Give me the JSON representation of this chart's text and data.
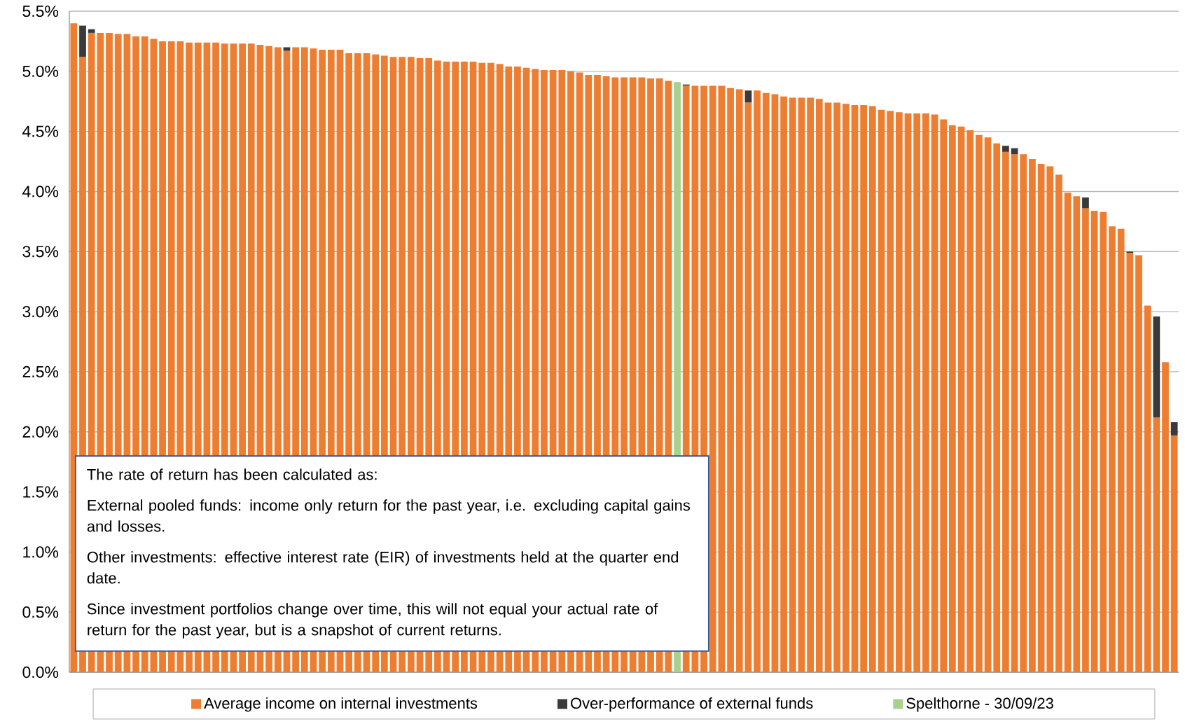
{
  "chart_data": {
    "type": "bar",
    "stacked": true,
    "grid": "y",
    "legend": "bottom",
    "tick_labels": "y",
    "categories": [
      null,
      null,
      null,
      null,
      null,
      null,
      null,
      null,
      null,
      null,
      null,
      null,
      null,
      null,
      null,
      null,
      null,
      null,
      null,
      null,
      null,
      null,
      null,
      null,
      null,
      null,
      null,
      null,
      null,
      null,
      null,
      null,
      null,
      null,
      null,
      null,
      null,
      null,
      null,
      null,
      null,
      null,
      null,
      null,
      null,
      null,
      null,
      null,
      null,
      null,
      null,
      null,
      null,
      null,
      null,
      null,
      null,
      null,
      null,
      null,
      null,
      null,
      null,
      null,
      null,
      null,
      null,
      null,
      null,
      null,
      null,
      null,
      null,
      null,
      null,
      null,
      null,
      null,
      null,
      null,
      null,
      null,
      null,
      null,
      null,
      null,
      null,
      null,
      null,
      null,
      null,
      null,
      null,
      null,
      null,
      null,
      null,
      null,
      null,
      null,
      null,
      null,
      null,
      null,
      null,
      null,
      null,
      null,
      null,
      null,
      null,
      null,
      null,
      null,
      null,
      null,
      null,
      null,
      null,
      null,
      null,
      null,
      null,
      null,
      null
    ],
    "ylim": [
      0,
      5.5
    ],
    "yticks": [
      {
        "value": 0,
        "label": "0.0%"
      },
      {
        "value": 0.5,
        "label": "0.5%"
      },
      {
        "value": 1,
        "label": "1.0%"
      },
      {
        "value": 1.5,
        "label": "1.5%"
      },
      {
        "value": 2,
        "label": "2.0%"
      },
      {
        "value": 2.5,
        "label": "2.5%"
      },
      {
        "value": 3,
        "label": "3.0%"
      },
      {
        "value": 3.5,
        "label": "3.5%"
      },
      {
        "value": 4,
        "label": "4.0%"
      },
      {
        "value": 4.5,
        "label": "4.5%"
      },
      {
        "value": 5,
        "label": "5.0%"
      },
      {
        "value": 5.5,
        "label": "5.5%"
      }
    ],
    "series": [
      {
        "name": "Average income on internal investments",
        "color": "#ed7d31",
        "values": [
          5.4,
          5.12,
          5.32,
          5.32,
          5.32,
          5.31,
          5.31,
          5.29,
          5.29,
          5.27,
          5.25,
          5.25,
          5.25,
          5.24,
          5.24,
          5.24,
          5.24,
          5.23,
          5.23,
          5.23,
          5.23,
          5.22,
          5.21,
          5.2,
          5.17,
          5.2,
          5.2,
          5.19,
          5.18,
          5.18,
          5.18,
          5.15,
          5.15,
          5.15,
          5.14,
          5.13,
          5.12,
          5.12,
          5.12,
          5.11,
          5.11,
          5.09,
          5.08,
          5.08,
          5.08,
          5.08,
          5.07,
          5.07,
          5.06,
          5.04,
          5.04,
          5.03,
          5.02,
          5.01,
          5.01,
          5.01,
          5.0,
          4.99,
          4.97,
          4.97,
          4.96,
          4.95,
          4.95,
          4.95,
          4.95,
          4.94,
          4.94,
          4.92,
          null,
          4.88,
          4.88,
          4.88,
          4.88,
          4.88,
          4.86,
          4.85,
          4.74,
          4.84,
          4.82,
          4.81,
          4.79,
          4.78,
          4.78,
          4.78,
          4.77,
          4.74,
          4.74,
          4.73,
          4.72,
          4.72,
          4.71,
          4.68,
          4.67,
          4.66,
          4.65,
          4.65,
          4.65,
          4.64,
          4.6,
          4.55,
          4.54,
          4.51,
          4.47,
          4.45,
          4.4,
          4.33,
          4.31,
          4.31,
          4.27,
          4.23,
          4.21,
          4.14,
          3.99,
          3.96,
          3.86,
          3.84,
          3.83,
          3.71,
          3.69,
          3.49,
          3.47,
          3.05,
          2.12,
          2.58,
          1.97
        ]
      },
      {
        "name": "Over-performance of external funds",
        "color": "#3a3a3a",
        "values": [
          null,
          0.26,
          0.03,
          null,
          null,
          null,
          null,
          null,
          null,
          null,
          null,
          null,
          null,
          null,
          null,
          null,
          null,
          null,
          null,
          null,
          null,
          null,
          null,
          null,
          0.03,
          null,
          null,
          null,
          null,
          null,
          null,
          null,
          null,
          null,
          null,
          null,
          null,
          null,
          null,
          null,
          null,
          null,
          null,
          null,
          null,
          null,
          null,
          null,
          null,
          null,
          null,
          null,
          null,
          null,
          null,
          null,
          null,
          null,
          null,
          null,
          null,
          null,
          null,
          null,
          null,
          null,
          null,
          null,
          null,
          0.01,
          null,
          null,
          null,
          null,
          null,
          null,
          0.1,
          null,
          null,
          null,
          null,
          null,
          null,
          null,
          null,
          null,
          null,
          null,
          null,
          null,
          null,
          null,
          null,
          null,
          null,
          null,
          null,
          null,
          null,
          null,
          null,
          null,
          null,
          null,
          null,
          0.05,
          0.05,
          null,
          null,
          null,
          null,
          null,
          null,
          null,
          0.09,
          null,
          null,
          null,
          null,
          0.01,
          null,
          null,
          0.84,
          null,
          0.11
        ]
      },
      {
        "name": "Spelthorne - 30/09/23",
        "color": "#a9d18e",
        "values": [
          null,
          null,
          null,
          null,
          null,
          null,
          null,
          null,
          null,
          null,
          null,
          null,
          null,
          null,
          null,
          null,
          null,
          null,
          null,
          null,
          null,
          null,
          null,
          null,
          null,
          null,
          null,
          null,
          null,
          null,
          null,
          null,
          null,
          null,
          null,
          null,
          null,
          null,
          null,
          null,
          null,
          null,
          null,
          null,
          null,
          null,
          null,
          null,
          null,
          null,
          null,
          null,
          null,
          null,
          null,
          null,
          null,
          null,
          null,
          null,
          null,
          null,
          null,
          null,
          null,
          null,
          null,
          null,
          4.91,
          null,
          null,
          null,
          null,
          null,
          null,
          null,
          null,
          null,
          null,
          null,
          null,
          null,
          null,
          null,
          null,
          null,
          null,
          null,
          null,
          null,
          null,
          null,
          null,
          null,
          null,
          null,
          null,
          null,
          null,
          null,
          null,
          null,
          null,
          null,
          null,
          null,
          null,
          null,
          null,
          null,
          null,
          null,
          null,
          null,
          null,
          null,
          null,
          null,
          null,
          null,
          null,
          null,
          null,
          null,
          null
        ]
      }
    ],
    "annotations": [
      "The rate of return has been calculated as:",
      "External pooled funds: income only return for the past year, i.e. excluding capital gains and losses.",
      "Other investments: effective interest rate (EIR) of investments held at the quarter end date.",
      "Since investment portfolios change over time, this will not equal your actual rate of return for the past year, but is a snapshot of current returns."
    ]
  }
}
